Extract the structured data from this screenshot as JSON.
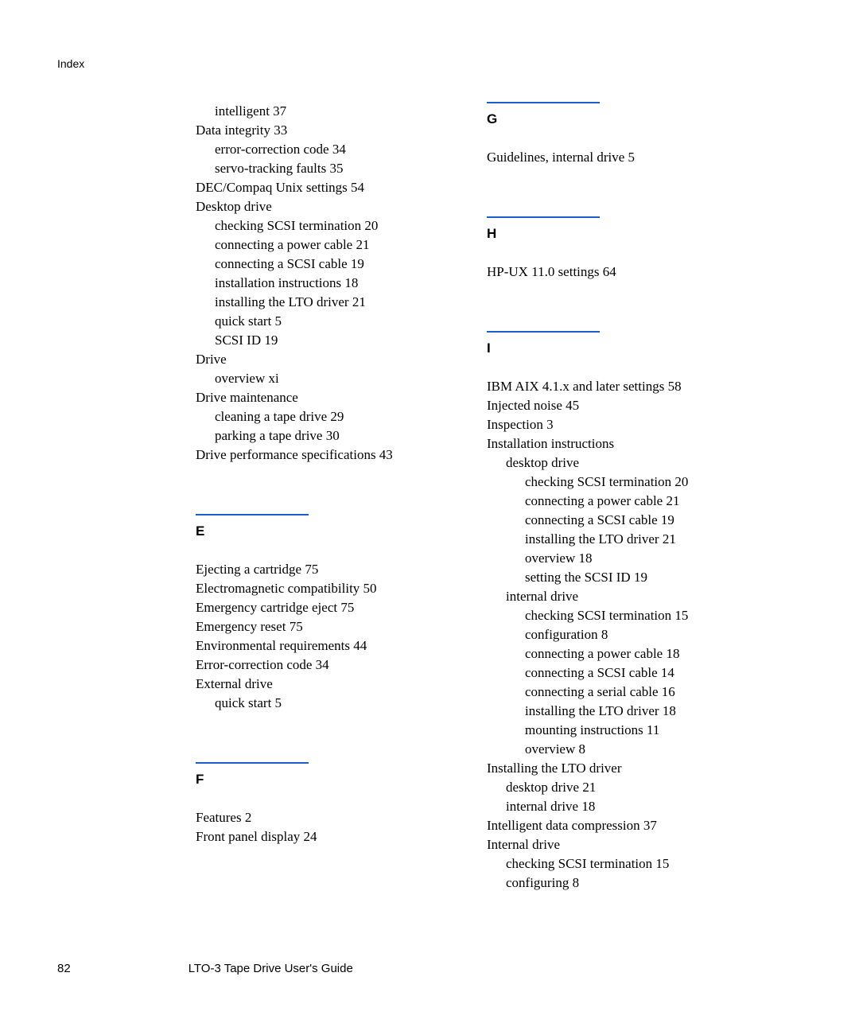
{
  "header": "Index",
  "left_column": {
    "d_continued": [
      {
        "text": "intelligent 37",
        "indent": 1
      },
      {
        "text": "Data integrity 33",
        "indent": 0
      },
      {
        "text": "error-correction code 34",
        "indent": 1
      },
      {
        "text": "servo-tracking faults 35",
        "indent": 1
      },
      {
        "text": "DEC/Compaq Unix settings 54",
        "indent": 0
      },
      {
        "text": "Desktop drive",
        "indent": 0
      },
      {
        "text": "checking SCSI termination 20",
        "indent": 1
      },
      {
        "text": "connecting a power cable 21",
        "indent": 1
      },
      {
        "text": "connecting a SCSI cable 19",
        "indent": 1
      },
      {
        "text": "installation instructions 18",
        "indent": 1
      },
      {
        "text": "installing the LTO driver 21",
        "indent": 1
      },
      {
        "text": "quick start 5",
        "indent": 1
      },
      {
        "text": "SCSI ID 19",
        "indent": 1
      },
      {
        "text": "Drive",
        "indent": 0
      },
      {
        "text": "overview xi",
        "indent": 1
      },
      {
        "text": "Drive maintenance",
        "indent": 0
      },
      {
        "text": "cleaning a tape drive 29",
        "indent": 1
      },
      {
        "text": "parking a tape drive 30",
        "indent": 1
      },
      {
        "text": "Drive performance specifications 43",
        "indent": 0
      }
    ],
    "e_section": {
      "letter": "E",
      "entries": [
        {
          "text": "Ejecting a cartridge 75",
          "indent": 0
        },
        {
          "text": "Electromagnetic compatibility 50",
          "indent": 0
        },
        {
          "text": "Emergency cartridge eject 75",
          "indent": 0
        },
        {
          "text": "Emergency reset 75",
          "indent": 0
        },
        {
          "text": "Environmental requirements 44",
          "indent": 0
        },
        {
          "text": "Error-correction code 34",
          "indent": 0
        },
        {
          "text": "External drive",
          "indent": 0
        },
        {
          "text": "quick start 5",
          "indent": 1
        }
      ]
    },
    "f_section": {
      "letter": "F",
      "entries": [
        {
          "text": "Features 2",
          "indent": 0
        },
        {
          "text": "Front panel display 24",
          "indent": 0
        }
      ]
    }
  },
  "right_column": {
    "g_section": {
      "letter": "G",
      "entries": [
        {
          "text": "Guidelines, internal drive 5",
          "indent": 0
        }
      ]
    },
    "h_section": {
      "letter": "H",
      "entries": [
        {
          "text": "HP-UX 11.0 settings 64",
          "indent": 0
        }
      ]
    },
    "i_section": {
      "letter": "I",
      "entries": [
        {
          "text": "IBM AIX 4.1.x and later settings 58",
          "indent": 0
        },
        {
          "text": "Injected noise 45",
          "indent": 0
        },
        {
          "text": "Inspection 3",
          "indent": 0
        },
        {
          "text": "Installation instructions",
          "indent": 0
        },
        {
          "text": "desktop drive",
          "indent": 1
        },
        {
          "text": "checking SCSI termination 20",
          "indent": 2
        },
        {
          "text": "connecting a power cable 21",
          "indent": 2
        },
        {
          "text": "connecting a SCSI cable 19",
          "indent": 2
        },
        {
          "text": "installing the LTO driver 21",
          "indent": 2
        },
        {
          "text": "overview 18",
          "indent": 2
        },
        {
          "text": "setting the SCSI ID 19",
          "indent": 2
        },
        {
          "text": "internal drive",
          "indent": 1
        },
        {
          "text": "checking SCSI termination 15",
          "indent": 2
        },
        {
          "text": "configuration 8",
          "indent": 2
        },
        {
          "text": "connecting a power cable 18",
          "indent": 2
        },
        {
          "text": "connecting a SCSI cable 14",
          "indent": 2
        },
        {
          "text": "connecting a serial cable 16",
          "indent": 2
        },
        {
          "text": "installing the LTO driver 18",
          "indent": 2
        },
        {
          "text": "mounting instructions 11",
          "indent": 2
        },
        {
          "text": "overview 8",
          "indent": 2
        },
        {
          "text": "Installing the LTO driver",
          "indent": 0
        },
        {
          "text": "desktop drive 21",
          "indent": 1
        },
        {
          "text": "internal drive 18",
          "indent": 1
        },
        {
          "text": "Intelligent data compression 37",
          "indent": 0
        },
        {
          "text": "Internal drive",
          "indent": 0
        },
        {
          "text": "checking SCSI termination 15",
          "indent": 1
        },
        {
          "text": "configuring 8",
          "indent": 1
        }
      ]
    }
  },
  "footer": {
    "page": "82",
    "title": "LTO-3 Tape Drive User's Guide"
  },
  "colors": {
    "rule": "#1b5fce",
    "text": "#000000",
    "background": "#ffffff"
  },
  "typography": {
    "serif_family": "Georgia",
    "sans_family": "Arial",
    "body_fontsize": 17,
    "header_fontsize": 14,
    "footer_fontsize": 15
  }
}
